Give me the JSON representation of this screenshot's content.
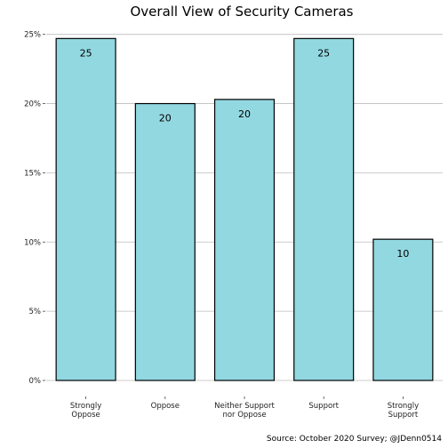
{
  "chart_data": {
    "type": "bar",
    "title": "Overall View of Security Cameras",
    "categories": [
      "Strongly\nOppose",
      "Oppose",
      "Neither Support\nnor Oppose",
      "Support",
      "Strongly\nSupport"
    ],
    "values": [
      24.7,
      20.0,
      20.3,
      24.7,
      10.2
    ],
    "data_labels": [
      "25",
      "20",
      "20",
      "25",
      "10"
    ],
    "xlabel": "",
    "ylabel": "",
    "ylim": [
      0,
      25
    ],
    "yticks": [
      0,
      5,
      10,
      15,
      20,
      25
    ],
    "ytick_labels": [
      "0%",
      "5%",
      "10%",
      "15%",
      "20%",
      "25%"
    ],
    "grid": true,
    "bar_color": "#92d8e1",
    "bar_edge_color": "#000000",
    "caption": "Source: October 2020 Survey; @JDenn0514"
  }
}
